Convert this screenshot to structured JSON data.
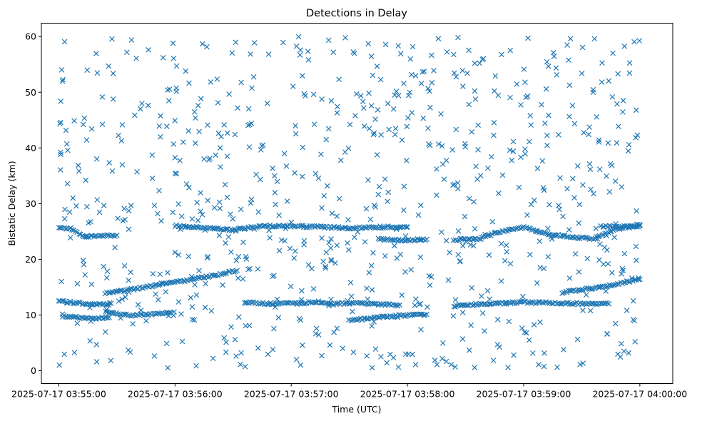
{
  "chart_data": {
    "type": "scatter",
    "title": "Detections in Delay",
    "xlabel": "Time (UTC)",
    "ylabel": "Bistatic Delay (km)",
    "xlim": [
      "2025-07-17 03:54:51",
      "2025-07-17 04:00:17"
    ],
    "ylim": [
      -2.3,
      62.4
    ],
    "yticks": [
      0,
      10,
      20,
      30,
      40,
      50,
      60
    ],
    "xticks": [
      "2025-07-17 03:55:00",
      "2025-07-17 03:56:00",
      "2025-07-17 03:57:00",
      "2025-07-17 03:58:00",
      "2025-07-17 03:59:00",
      "2025-07-17 04:00:00"
    ],
    "marker": "x",
    "marker_color": "#1f77b4",
    "grid": false,
    "time_range": [
      "2025-07-17 03:55:00",
      "2025-07-17 04:00:00"
    ],
    "series": [
      {
        "kind": "track",
        "points": [
          [
            "2025-07-17 03:55:00",
            12.5
          ],
          [
            "2025-07-17 03:55:04",
            12.3
          ],
          [
            "2025-07-17 03:55:08",
            12.2
          ],
          [
            "2025-07-17 03:55:12",
            12.1
          ],
          [
            "2025-07-17 03:55:16",
            12.0
          ],
          [
            "2025-07-17 03:55:20",
            11.9
          ],
          [
            "2025-07-17 03:55:24",
            11.9
          ],
          [
            "2025-07-17 03:55:27",
            12.1
          ]
        ]
      },
      {
        "kind": "track",
        "points": [
          [
            "2025-07-17 03:55:02",
            9.8
          ],
          [
            "2025-07-17 03:55:06",
            9.7
          ],
          [
            "2025-07-17 03:55:10",
            9.6
          ],
          [
            "2025-07-17 03:55:14",
            9.4
          ],
          [
            "2025-07-17 03:55:18",
            9.3
          ],
          [
            "2025-07-17 03:55:22",
            9.5
          ],
          [
            "2025-07-17 03:55:26",
            9.6
          ]
        ]
      },
      {
        "kind": "track",
        "points": [
          [
            "2025-07-17 03:55:00",
            25.6
          ],
          [
            "2025-07-17 03:55:06",
            25.5
          ],
          [
            "2025-07-17 03:55:12",
            24.2
          ],
          [
            "2025-07-17 03:55:18",
            24.1
          ],
          [
            "2025-07-17 03:55:24",
            24.2
          ],
          [
            "2025-07-17 03:55:30",
            24.3
          ]
        ]
      },
      {
        "kind": "track",
        "points": [
          [
            "2025-07-17 03:55:24",
            10.5
          ],
          [
            "2025-07-17 03:55:30",
            10.3
          ],
          [
            "2025-07-17 03:55:36",
            10.0
          ],
          [
            "2025-07-17 03:55:42",
            10.0
          ],
          [
            "2025-07-17 03:55:48",
            10.1
          ],
          [
            "2025-07-17 03:55:54",
            10.2
          ],
          [
            "2025-07-17 03:55:58",
            10.4
          ]
        ]
      },
      {
        "kind": "track",
        "points": [
          [
            "2025-07-17 03:55:24",
            13.9
          ],
          [
            "2025-07-17 03:55:36",
            14.5
          ],
          [
            "2025-07-17 03:55:48",
            15.2
          ],
          [
            "2025-07-17 03:56:00",
            15.9
          ],
          [
            "2025-07-17 03:56:12",
            16.6
          ],
          [
            "2025-07-17 03:56:24",
            17.3
          ],
          [
            "2025-07-17 03:56:32",
            18.0
          ]
        ]
      },
      {
        "kind": "track",
        "points": [
          [
            "2025-07-17 03:56:00",
            26.0
          ],
          [
            "2025-07-17 03:56:15",
            25.7
          ],
          [
            "2025-07-17 03:56:30",
            25.3
          ],
          [
            "2025-07-17 03:56:45",
            26.0
          ],
          [
            "2025-07-17 03:57:00",
            26.0
          ],
          [
            "2025-07-17 03:57:15",
            25.8
          ],
          [
            "2025-07-17 03:57:30",
            25.6
          ],
          [
            "2025-07-17 03:57:45",
            25.8
          ],
          [
            "2025-07-17 03:58:00",
            25.8
          ]
        ]
      },
      {
        "kind": "track",
        "points": [
          [
            "2025-07-17 03:56:36",
            12.3
          ],
          [
            "2025-07-17 03:56:50",
            12.0
          ],
          [
            "2025-07-17 03:57:04",
            12.1
          ],
          [
            "2025-07-17 03:57:14",
            12.4
          ],
          [
            "2025-07-17 03:57:22",
            12.0
          ],
          [
            "2025-07-17 03:57:34",
            12.2
          ],
          [
            "2025-07-17 03:57:46",
            11.9
          ],
          [
            "2025-07-17 03:57:56",
            11.8
          ]
        ]
      },
      {
        "kind": "track",
        "points": [
          [
            "2025-07-17 03:57:30",
            9.0
          ],
          [
            "2025-07-17 03:57:45",
            9.6
          ],
          [
            "2025-07-17 03:58:00",
            10.0
          ],
          [
            "2025-07-17 03:58:10",
            10.1
          ]
        ]
      },
      {
        "kind": "track",
        "points": [
          [
            "2025-07-17 03:57:45",
            23.6
          ],
          [
            "2025-07-17 03:58:00",
            23.4
          ],
          [
            "2025-07-17 03:58:10",
            23.6
          ]
        ]
      },
      {
        "kind": "track",
        "points": [
          [
            "2025-07-17 03:58:24",
            11.6
          ],
          [
            "2025-07-17 03:58:36",
            11.9
          ],
          [
            "2025-07-17 03:58:48",
            12.1
          ],
          [
            "2025-07-17 03:59:00",
            12.3
          ],
          [
            "2025-07-17 03:59:12",
            12.2
          ],
          [
            "2025-07-17 03:59:24",
            12.1
          ],
          [
            "2025-07-17 03:59:36",
            12.0
          ],
          [
            "2025-07-17 03:59:44",
            12.0
          ]
        ]
      },
      {
        "kind": "track",
        "points": [
          [
            "2025-07-17 03:58:24",
            23.5
          ],
          [
            "2025-07-17 03:58:36",
            23.6
          ],
          [
            "2025-07-17 03:58:48",
            25.0
          ],
          [
            "2025-07-17 03:59:00",
            25.8
          ],
          [
            "2025-07-17 03:59:12",
            24.6
          ],
          [
            "2025-07-17 03:59:24",
            24.0
          ],
          [
            "2025-07-17 03:59:36",
            23.7
          ],
          [
            "2025-07-17 03:59:48",
            25.5
          ],
          [
            "2025-07-17 04:00:00",
            26.0
          ]
        ]
      },
      {
        "kind": "track",
        "points": [
          [
            "2025-07-17 03:59:20",
            14.0
          ],
          [
            "2025-07-17 03:59:30",
            14.6
          ],
          [
            "2025-07-17 03:59:40",
            15.0
          ],
          [
            "2025-07-17 03:59:50",
            15.7
          ],
          [
            "2025-07-17 04:00:00",
            16.4
          ]
        ]
      },
      {
        "kind": "track",
        "points": [
          [
            "2025-07-17 03:59:40",
            26.0
          ],
          [
            "2025-07-17 03:59:50",
            25.8
          ],
          [
            "2025-07-17 04:00:00",
            26.2
          ]
        ]
      },
      {
        "kind": "clutter",
        "ymin": 0.5,
        "ymax": 60.0,
        "start": "2025-07-17 03:55:00",
        "end": "2025-07-17 04:00:00",
        "count": 780
      }
    ]
  }
}
